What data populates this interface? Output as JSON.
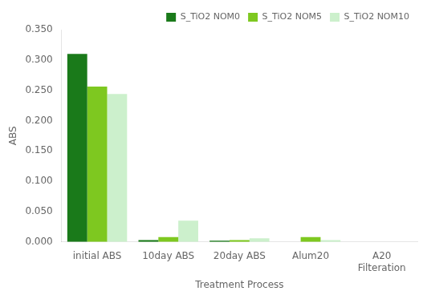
{
  "chart_data": {
    "type": "bar",
    "categories": [
      "initial ABS",
      "10day ABS",
      "20day ABS",
      "Alum20",
      "A20\nFilteration"
    ],
    "series": [
      {
        "name": "S_TiO2 NOM0",
        "color": "#1a7a1a",
        "values": [
          0.31,
          0.003,
          0.002,
          0.0,
          0.0
        ]
      },
      {
        "name": "S_TiO2 NOM5",
        "color": "#7ec820",
        "values": [
          0.256,
          0.008,
          0.003,
          0.008,
          0.0
        ]
      },
      {
        "name": "S_TiO2 NOM10",
        "color": "#ccf0cc",
        "values": [
          0.244,
          0.035,
          0.006,
          0.003,
          0.0
        ]
      }
    ],
    "xlabel": "Treatment Process",
    "ylabel": "ABS",
    "ylim": [
      0.0,
      0.35
    ],
    "yticks": [
      {
        "value": 0.0,
        "label": "0.000"
      },
      {
        "value": 0.05,
        "label": "0.050"
      },
      {
        "value": 0.1,
        "label": "0.100"
      },
      {
        "value": 0.15,
        "label": "0.150"
      },
      {
        "value": 0.2,
        "label": "0.200"
      },
      {
        "value": 0.25,
        "label": "0.250"
      },
      {
        "value": 0.3,
        "label": "0.300"
      },
      {
        "value": 0.35,
        "label": "0.350"
      }
    ],
    "grid": false,
    "legend": "upper right"
  }
}
